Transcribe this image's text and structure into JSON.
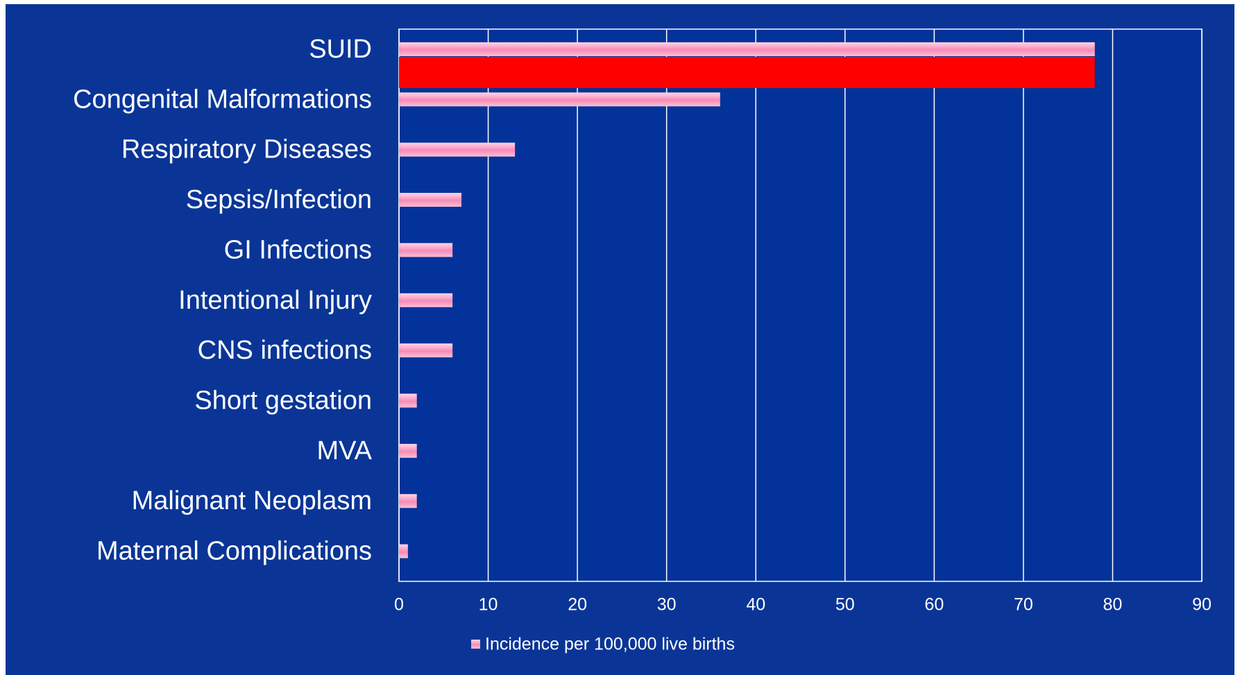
{
  "chart_data": {
    "type": "bar",
    "orientation": "horizontal",
    "categories": [
      "SUID",
      "Congenital Malformations",
      "Respiratory Diseases",
      "Sepsis/Infection",
      "GI Infections",
      "Intentional Injury",
      "CNS infections",
      "Short gestation",
      "MVA",
      "Malignant Neoplasm",
      "Maternal Complications"
    ],
    "series": [
      {
        "name": "Incidence per 100,000 live births",
        "color": "#f27aae",
        "values": [
          78,
          36,
          13,
          7,
          6,
          6,
          6,
          2,
          2,
          2,
          1
        ]
      }
    ],
    "xlim": [
      0,
      90
    ],
    "xticks": [
      0,
      10,
      20,
      30,
      40,
      50,
      60,
      70,
      80,
      90
    ],
    "grid": true,
    "legend": "bottom",
    "highlight": {
      "category": "SUID",
      "color": "#ff0000"
    }
  }
}
